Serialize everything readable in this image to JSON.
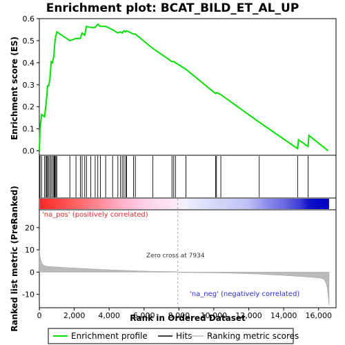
{
  "chart_data": {
    "type": "line",
    "title": "Enrichment plot: BCAT_BILD_ET_AL_UP",
    "xlabel": "Rank in Ordered Dataset",
    "ylabel_top": "Enrichment score (ES)",
    "ylabel_bottom": "Ranked list metric (PreRanked)",
    "xlim": [
      0,
      17000
    ],
    "ylim_top": [
      -0.02,
      0.6
    ],
    "ylim_bottom": [
      -16,
      28
    ],
    "x_ticks": [
      0,
      2000,
      4000,
      6000,
      8000,
      10000,
      12000,
      14000,
      16000
    ],
    "x_tick_labels": [
      "0",
      "2,000",
      "4,000",
      "6,000",
      "8,000",
      "10,000",
      "12,000",
      "14,000",
      "16,000"
    ],
    "y_ticks_top": [
      0.0,
      0.1,
      0.2,
      0.3,
      0.4,
      0.5,
      0.6
    ],
    "y_tick_labels_top": [
      "0.0",
      "0.1",
      "0.2",
      "0.3",
      "0.4",
      "0.5",
      "0.6"
    ],
    "y_ticks_bottom": [
      -10,
      0,
      10,
      20
    ],
    "y_tick_labels_bottom": [
      "-10",
      "0",
      "10",
      "20"
    ],
    "n_genes": 16600,
    "zero_cross": 7934,
    "hits": [
      40,
      130,
      300,
      380,
      430,
      470,
      540,
      610,
      680,
      760,
      830,
      870,
      900,
      950,
      1000,
      1750,
      2100,
      2350,
      2450,
      2600,
      2700,
      2950,
      3200,
      3350,
      3500,
      3800,
      4200,
      4500,
      4650,
      4750,
      4850,
      4950,
      5000,
      5400,
      5500,
      6500,
      7600,
      7700,
      7800,
      8400,
      10100,
      10150,
      10400,
      12600,
      14800,
      15400
    ],
    "es_curve": [
      [
        0,
        0.0
      ],
      [
        40,
        0.1
      ],
      [
        130,
        0.165
      ],
      [
        300,
        0.155
      ],
      [
        380,
        0.21
      ],
      [
        430,
        0.25
      ],
      [
        470,
        0.295
      ],
      [
        540,
        0.295
      ],
      [
        610,
        0.33
      ],
      [
        680,
        0.405
      ],
      [
        760,
        0.4
      ],
      [
        830,
        0.43
      ],
      [
        870,
        0.47
      ],
      [
        900,
        0.5
      ],
      [
        950,
        0.52
      ],
      [
        1000,
        0.54
      ],
      [
        1750,
        0.5
      ],
      [
        2100,
        0.51
      ],
      [
        2350,
        0.51
      ],
      [
        2450,
        0.535
      ],
      [
        2600,
        0.525
      ],
      [
        2700,
        0.565
      ],
      [
        2950,
        0.56
      ],
      [
        3200,
        0.56
      ],
      [
        3350,
        0.575
      ],
      [
        3500,
        0.565
      ],
      [
        3800,
        0.565
      ],
      [
        4200,
        0.55
      ],
      [
        4500,
        0.535
      ],
      [
        4650,
        0.54
      ],
      [
        4750,
        0.535
      ],
      [
        4850,
        0.545
      ],
      [
        4950,
        0.54
      ],
      [
        5000,
        0.545
      ],
      [
        5400,
        0.53
      ],
      [
        5500,
        0.53
      ],
      [
        6500,
        0.465
      ],
      [
        7600,
        0.405
      ],
      [
        7700,
        0.405
      ],
      [
        7800,
        0.4
      ],
      [
        8400,
        0.37
      ],
      [
        10100,
        0.26
      ],
      [
        10150,
        0.265
      ],
      [
        10400,
        0.255
      ],
      [
        12600,
        0.13
      ],
      [
        14800,
        0.01
      ],
      [
        14850,
        0.05
      ],
      [
        15400,
        0.02
      ],
      [
        15450,
        0.07
      ],
      [
        16550,
        0.0
      ]
    ],
    "heatmap_stops": [
      [
        0,
        "#ff2626"
      ],
      [
        0.14,
        "#ff6b6b"
      ],
      [
        0.28,
        "#ffb0c8"
      ],
      [
        0.36,
        "#ffcfe6"
      ],
      [
        0.46,
        "#ffe8f6"
      ],
      [
        0.5,
        "#f0f0ff"
      ],
      [
        0.6,
        "#d8d8fa"
      ],
      [
        0.72,
        "#c0c0f5"
      ],
      [
        0.78,
        "#9090ee"
      ],
      [
        0.85,
        "#6666e0"
      ],
      [
        0.9,
        "#3b3bd6"
      ],
      [
        0.93,
        "#1010c8"
      ],
      [
        1.0,
        "#0000c0"
      ]
    ],
    "annotations": {
      "pos_label": "'na_pos' (positively correlated)",
      "neg_label": "'na_neg' (negatively correlated)",
      "zero_label": "Zero cross at 7934"
    },
    "legend": [
      "Enrichment profile",
      "Hits",
      "Ranking metric scores"
    ],
    "colors": {
      "es_line": "#00e000",
      "hit": "#000000",
      "metric_fill": "#bbbbbb",
      "frame": "#000000"
    }
  }
}
